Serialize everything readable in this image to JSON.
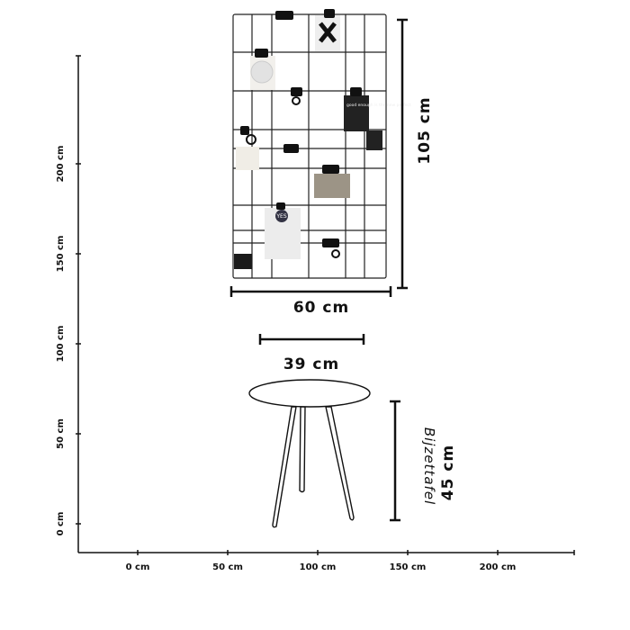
{
  "axes": {
    "x_ticks": [
      "0 cm",
      "50 cm",
      "100 cm",
      "150 cm",
      "200 cm"
    ],
    "y_ticks": [
      "0 cm",
      "50 cm",
      "100 cm",
      "150 cm",
      "200 cm"
    ]
  },
  "memo_board": {
    "height_label": "105 cm",
    "width_label": "60 cm",
    "card_text": "good enough is the new perfect",
    "card_yes": "YES"
  },
  "side_table": {
    "name": "Bijzettafel",
    "diameter_label": "39 cm",
    "height_label": "45 cm"
  },
  "colors": {
    "line": "#111111",
    "background": "#ffffff"
  }
}
